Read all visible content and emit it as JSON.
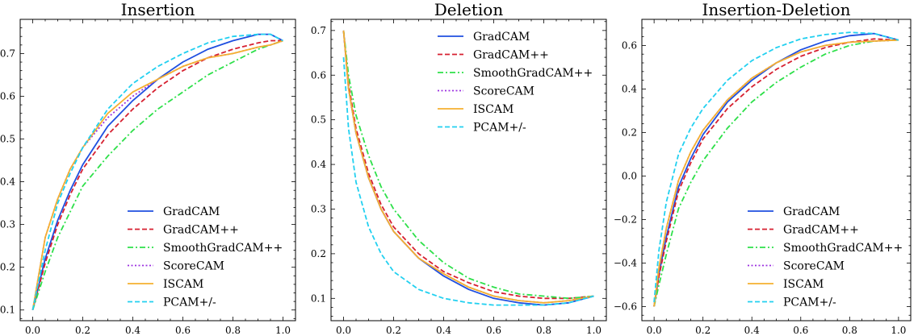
{
  "chart_data": [
    {
      "type": "line",
      "title": "Insertion",
      "xlabel": "",
      "ylabel": "",
      "xlim": [
        -0.05,
        1.05
      ],
      "ylim": [
        0.075,
        0.78
      ],
      "xticks": [
        0.0,
        0.2,
        0.4,
        0.6,
        0.8,
        1.0
      ],
      "xtick_labels": [
        "0.0",
        "0.2",
        "0.4",
        "0.6",
        "0.8",
        "1.0"
      ],
      "yticks": [
        0.1,
        0.2,
        0.3,
        0.4,
        0.5,
        0.6,
        0.7
      ],
      "ytick_labels": [
        "0.1",
        "0.2",
        "0.3",
        "0.4",
        "0.5",
        "0.6",
        "0.7"
      ],
      "legend_position": "lower-right",
      "x": [
        0.0,
        0.05,
        0.1,
        0.15,
        0.2,
        0.3,
        0.4,
        0.5,
        0.6,
        0.7,
        0.8,
        0.9,
        0.95,
        1.0
      ],
      "series": [
        {
          "name": "GradCAM",
          "color": "#1f4fe0",
          "dash": "solid",
          "values": [
            0.1,
            0.22,
            0.31,
            0.38,
            0.44,
            0.53,
            0.59,
            0.64,
            0.68,
            0.71,
            0.73,
            0.745,
            0.745,
            0.73
          ]
        },
        {
          "name": "GradCAM++",
          "color": "#d62030",
          "dash": "dashed",
          "values": [
            0.1,
            0.21,
            0.3,
            0.37,
            0.43,
            0.51,
            0.57,
            0.62,
            0.66,
            0.69,
            0.71,
            0.725,
            0.73,
            0.73
          ]
        },
        {
          "name": "SmoothGradCAM++",
          "color": "#2ee04a",
          "dash": "dashdot",
          "values": [
            0.1,
            0.19,
            0.27,
            0.33,
            0.39,
            0.46,
            0.52,
            0.57,
            0.61,
            0.65,
            0.68,
            0.71,
            0.72,
            0.73
          ]
        },
        {
          "name": "ScoreCAM",
          "color": "#9b30e0",
          "dash": "dotted",
          "values": [
            0.1,
            0.27,
            0.36,
            0.43,
            0.48,
            0.55,
            0.6,
            0.64,
            0.67,
            0.69,
            0.7,
            0.715,
            0.72,
            0.73
          ]
        },
        {
          "name": "ISCAM",
          "color": "#f5b030",
          "dash": "solid",
          "values": [
            0.1,
            0.27,
            0.36,
            0.43,
            0.48,
            0.56,
            0.61,
            0.64,
            0.67,
            0.69,
            0.7,
            0.715,
            0.72,
            0.73
          ]
        },
        {
          "name": "PCAM+/-",
          "color": "#22d0f0",
          "dash": "dashed",
          "values": [
            0.1,
            0.24,
            0.35,
            0.42,
            0.48,
            0.57,
            0.63,
            0.67,
            0.7,
            0.725,
            0.74,
            0.745,
            0.745,
            0.73
          ]
        }
      ]
    },
    {
      "type": "line",
      "title": "Deletion",
      "xlabel": "",
      "ylabel": "",
      "xlim": [
        -0.05,
        1.05
      ],
      "ylim": [
        0.05,
        0.725
      ],
      "xticks": [
        0.0,
        0.2,
        0.4,
        0.6,
        0.8,
        1.0
      ],
      "xtick_labels": [
        "0.0",
        "0.2",
        "0.4",
        "0.6",
        "0.8",
        "1.0"
      ],
      "yticks": [
        0.1,
        0.2,
        0.3,
        0.4,
        0.5,
        0.6,
        0.7
      ],
      "ytick_labels": [
        "0.1",
        "0.2",
        "0.3",
        "0.4",
        "0.5",
        "0.6",
        "0.7"
      ],
      "legend_position": "top-right",
      "x": [
        0.0,
        0.02,
        0.05,
        0.1,
        0.15,
        0.2,
        0.3,
        0.4,
        0.5,
        0.6,
        0.7,
        0.8,
        0.9,
        1.0
      ],
      "series": [
        {
          "name": "GradCAM",
          "color": "#1f4fe0",
          "dash": "solid",
          "values": [
            0.7,
            0.57,
            0.47,
            0.37,
            0.3,
            0.25,
            0.19,
            0.15,
            0.12,
            0.1,
            0.09,
            0.085,
            0.09,
            0.105
          ]
        },
        {
          "name": "GradCAM++",
          "color": "#d62030",
          "dash": "dashed",
          "values": [
            0.7,
            0.58,
            0.48,
            0.38,
            0.31,
            0.26,
            0.2,
            0.16,
            0.135,
            0.115,
            0.105,
            0.1,
            0.1,
            0.105
          ]
        },
        {
          "name": "SmoothGradCAM++",
          "color": "#2ee04a",
          "dash": "dashdot",
          "values": [
            0.7,
            0.6,
            0.51,
            0.42,
            0.35,
            0.3,
            0.23,
            0.18,
            0.145,
            0.125,
            0.11,
            0.105,
            0.1,
            0.105
          ]
        },
        {
          "name": "ScoreCAM",
          "color": "#9b30e0",
          "dash": "dotted",
          "values": [
            0.7,
            0.57,
            0.47,
            0.37,
            0.3,
            0.25,
            0.19,
            0.155,
            0.125,
            0.105,
            0.095,
            0.09,
            0.095,
            0.105
          ]
        },
        {
          "name": "ISCAM",
          "color": "#f5b030",
          "dash": "solid",
          "values": [
            0.7,
            0.57,
            0.47,
            0.37,
            0.3,
            0.25,
            0.19,
            0.155,
            0.125,
            0.105,
            0.095,
            0.09,
            0.095,
            0.105
          ]
        },
        {
          "name": "PCAM+/-",
          "color": "#22d0f0",
          "dash": "dashed",
          "values": [
            0.64,
            0.48,
            0.36,
            0.26,
            0.2,
            0.16,
            0.12,
            0.1,
            0.09,
            0.085,
            0.085,
            0.085,
            0.09,
            0.105
          ]
        }
      ]
    },
    {
      "type": "line",
      "title": "Insertion-Deletion",
      "xlabel": "",
      "ylabel": "",
      "xlim": [
        -0.05,
        1.05
      ],
      "ylim": [
        -0.665,
        0.72
      ],
      "xticks": [
        0.0,
        0.2,
        0.4,
        0.6,
        0.8,
        1.0
      ],
      "xtick_labels": [
        "0.0",
        "0.2",
        "0.4",
        "0.6",
        "0.8",
        "1.0"
      ],
      "yticks": [
        -0.6,
        -0.4,
        -0.2,
        0.0,
        0.2,
        0.4,
        0.6
      ],
      "ytick_labels": [
        "−0.6",
        "−0.4",
        "−0.2",
        "0.0",
        "0.2",
        "0.4",
        "0.6"
      ],
      "legend_position": "lower-right",
      "x": [
        0.0,
        0.02,
        0.05,
        0.1,
        0.15,
        0.2,
        0.3,
        0.4,
        0.5,
        0.6,
        0.7,
        0.8,
        0.9,
        1.0
      ],
      "series": [
        {
          "name": "GradCAM",
          "color": "#1f4fe0",
          "dash": "solid",
          "values": [
            -0.6,
            -0.45,
            -0.28,
            -0.05,
            0.08,
            0.19,
            0.34,
            0.44,
            0.52,
            0.58,
            0.62,
            0.645,
            0.655,
            0.625
          ]
        },
        {
          "name": "GradCAM++",
          "color": "#d62030",
          "dash": "dashed",
          "values": [
            -0.6,
            -0.46,
            -0.3,
            -0.07,
            0.06,
            0.17,
            0.31,
            0.41,
            0.49,
            0.55,
            0.59,
            0.615,
            0.63,
            0.625
          ]
        },
        {
          "name": "SmoothGradCAM++",
          "color": "#2ee04a",
          "dash": "dashdot",
          "values": [
            -0.6,
            -0.5,
            -0.36,
            -0.15,
            -0.03,
            0.07,
            0.22,
            0.34,
            0.43,
            0.5,
            0.56,
            0.6,
            0.62,
            0.625
          ]
        },
        {
          "name": "ScoreCAM",
          "color": "#9b30e0",
          "dash": "dotted",
          "values": [
            -0.6,
            -0.42,
            -0.24,
            -0.02,
            0.11,
            0.21,
            0.35,
            0.45,
            0.52,
            0.57,
            0.6,
            0.615,
            0.62,
            0.625
          ]
        },
        {
          "name": "ISCAM",
          "color": "#f5b030",
          "dash": "solid",
          "values": [
            -0.6,
            -0.42,
            -0.24,
            -0.02,
            0.11,
            0.21,
            0.35,
            0.45,
            0.52,
            0.57,
            0.6,
            0.615,
            0.62,
            0.625
          ]
        },
        {
          "name": "PCAM+/-",
          "color": "#22d0f0",
          "dash": "dashed",
          "values": [
            -0.58,
            -0.34,
            -0.12,
            0.1,
            0.22,
            0.31,
            0.44,
            0.53,
            0.59,
            0.63,
            0.65,
            0.66,
            0.655,
            0.625
          ]
        }
      ]
    }
  ]
}
